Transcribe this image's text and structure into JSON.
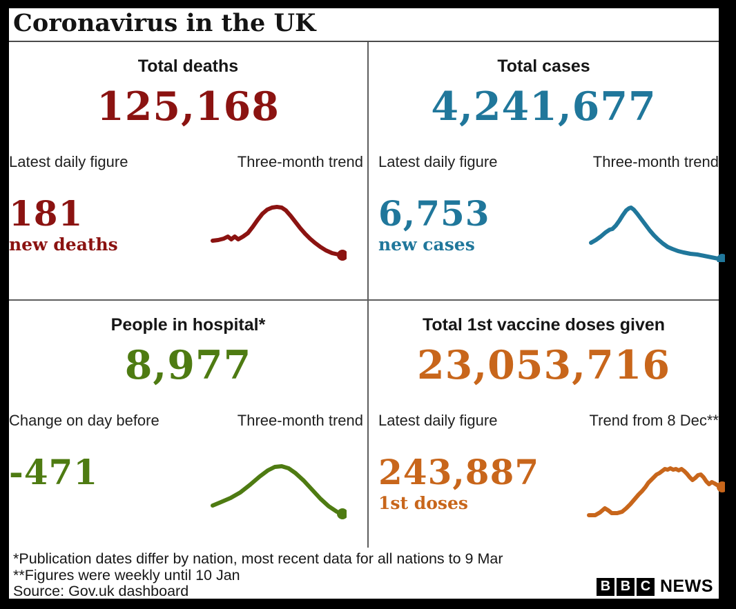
{
  "header": {
    "title": "Coronavirus in the UK"
  },
  "chart_data": [
    {
      "type": "line",
      "panel": "deaths",
      "heading": "Total deaths",
      "total": "125,168",
      "figure_label": "Latest daily figure",
      "trend_label": "Three-month trend",
      "figure": "181",
      "figure_sub": "new deaths",
      "color": "#8b1311",
      "trend_viewbox": "0 0 200 88",
      "trend_points": [
        [
          6,
          57
        ],
        [
          14,
          56
        ],
        [
          22,
          54
        ],
        [
          28,
          51
        ],
        [
          33,
          55
        ],
        [
          38,
          51
        ],
        [
          43,
          55
        ],
        [
          50,
          51
        ],
        [
          57,
          46
        ],
        [
          64,
          37
        ],
        [
          71,
          27
        ],
        [
          78,
          18
        ],
        [
          85,
          12
        ],
        [
          92,
          9
        ],
        [
          99,
          8
        ],
        [
          106,
          9
        ],
        [
          112,
          13
        ],
        [
          119,
          21
        ],
        [
          126,
          30
        ],
        [
          133,
          39
        ],
        [
          140,
          47
        ],
        [
          147,
          54
        ],
        [
          154,
          60
        ],
        [
          162,
          66
        ],
        [
          170,
          71
        ],
        [
          179,
          75
        ],
        [
          188,
          77
        ],
        [
          194,
          78
        ]
      ]
    },
    {
      "type": "line",
      "panel": "cases",
      "heading": "Total cases",
      "total": "4,241,677",
      "figure_label": "Latest daily figure",
      "trend_label": "Three-month trend",
      "figure": "6,753",
      "figure_sub": "new cases",
      "color": "#20779b",
      "trend_viewbox": "0 0 200 88",
      "trend_points": [
        [
          6,
          60
        ],
        [
          13,
          56
        ],
        [
          20,
          51
        ],
        [
          27,
          45
        ],
        [
          33,
          41
        ],
        [
          37,
          40
        ],
        [
          42,
          35
        ],
        [
          47,
          28
        ],
        [
          52,
          20
        ],
        [
          57,
          13
        ],
        [
          61,
          10
        ],
        [
          64,
          9
        ],
        [
          68,
          12
        ],
        [
          73,
          18
        ],
        [
          79,
          26
        ],
        [
          85,
          34
        ],
        [
          91,
          42
        ],
        [
          97,
          49
        ],
        [
          103,
          55
        ],
        [
          110,
          61
        ],
        [
          117,
          66
        ],
        [
          124,
          69
        ],
        [
          132,
          72
        ],
        [
          140,
          74
        ],
        [
          150,
          76
        ],
        [
          160,
          77
        ],
        [
          170,
          79
        ],
        [
          180,
          81
        ],
        [
          190,
          83
        ],
        [
          196,
          84
        ]
      ]
    },
    {
      "type": "line",
      "panel": "hospital",
      "heading": "People in hospital*",
      "total": "8,977",
      "figure_label": "Change on day before",
      "trend_label": "Three-month trend",
      "figure": "-471",
      "figure_sub": "",
      "color": "#4e7b12",
      "trend_viewbox": "0 0 200 88",
      "trend_points": [
        [
          6,
          66
        ],
        [
          18,
          61
        ],
        [
          32,
          55
        ],
        [
          46,
          47
        ],
        [
          60,
          36
        ],
        [
          74,
          24
        ],
        [
          86,
          15
        ],
        [
          96,
          10
        ],
        [
          106,
          9
        ],
        [
          116,
          12
        ],
        [
          126,
          19
        ],
        [
          138,
          30
        ],
        [
          150,
          43
        ],
        [
          162,
          56
        ],
        [
          174,
          67
        ],
        [
          186,
          75
        ],
        [
          194,
          78
        ]
      ]
    },
    {
      "type": "line",
      "panel": "vaccine",
      "heading": "Total 1st vaccine doses given",
      "total": "23,053,716",
      "figure_label": "Latest daily figure",
      "trend_label": "Trend from 8 Dec**",
      "figure": "243,887",
      "figure_sub": "1st doses",
      "color": "#c8661b",
      "trend_viewbox": "0 0 200 88",
      "trend_points": [
        [
          3,
          80
        ],
        [
          12,
          80
        ],
        [
          19,
          76
        ],
        [
          26,
          70
        ],
        [
          31,
          73
        ],
        [
          36,
          77
        ],
        [
          44,
          77
        ],
        [
          51,
          75
        ],
        [
          57,
          70
        ],
        [
          63,
          64
        ],
        [
          69,
          57
        ],
        [
          75,
          50
        ],
        [
          80,
          45
        ],
        [
          85,
          39
        ],
        [
          89,
          33
        ],
        [
          93,
          29
        ],
        [
          97,
          25
        ],
        [
          101,
          21
        ],
        [
          105,
          19
        ],
        [
          109,
          16
        ],
        [
          113,
          13
        ],
        [
          117,
          14
        ],
        [
          121,
          12
        ],
        [
          125,
          14
        ],
        [
          129,
          13
        ],
        [
          133,
          15
        ],
        [
          137,
          13
        ],
        [
          141,
          16
        ],
        [
          145,
          20
        ],
        [
          149,
          25
        ],
        [
          153,
          29
        ],
        [
          157,
          26
        ],
        [
          161,
          22
        ],
        [
          165,
          21
        ],
        [
          169,
          25
        ],
        [
          173,
          31
        ],
        [
          177,
          35
        ],
        [
          181,
          32
        ],
        [
          185,
          34
        ],
        [
          190,
          37
        ],
        [
          196,
          39
        ]
      ]
    }
  ],
  "footer": {
    "notes": [
      "*Publication dates differ by nation, most recent data for all nations to 9 Mar",
      "**Figures were weekly until 10 Jan",
      "Source: Gov.uk dashboard"
    ],
    "logo": {
      "letters": [
        "B",
        "B",
        "C"
      ],
      "text": "NEWS"
    }
  }
}
